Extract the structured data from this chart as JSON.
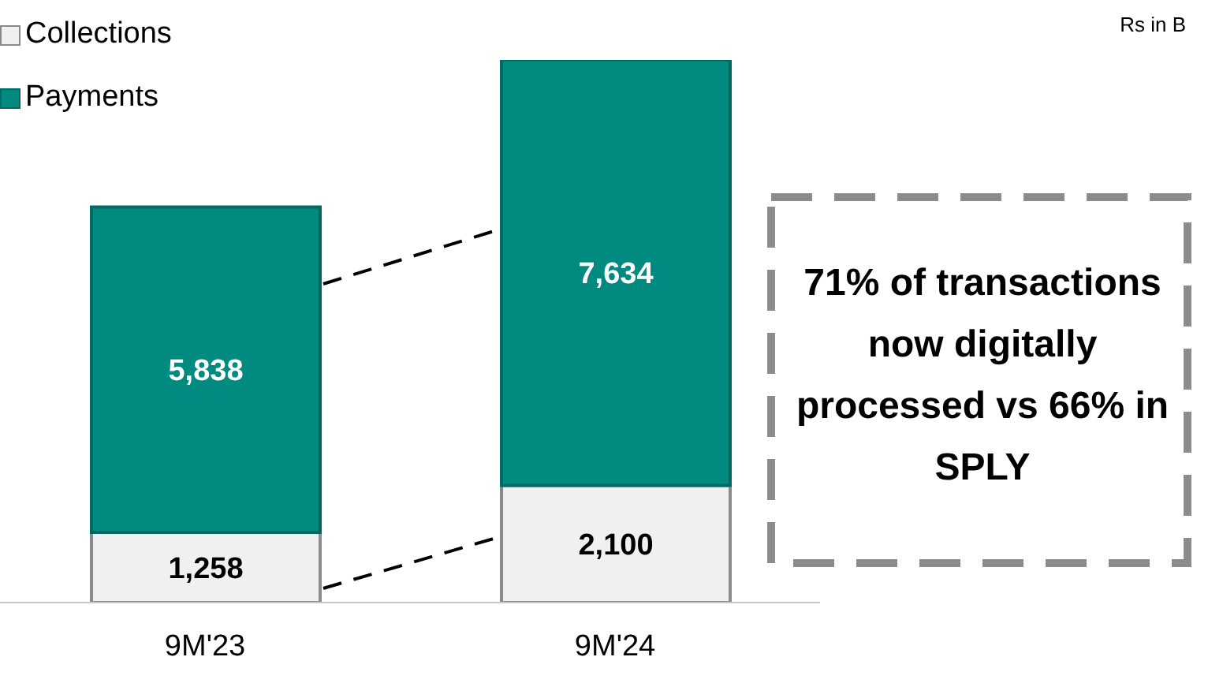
{
  "chart_data": {
    "type": "bar",
    "stacked": true,
    "categories": [
      "9M'23",
      "9M'24"
    ],
    "series": [
      {
        "name": "Collections",
        "color": "#f0f0f0",
        "values": [
          1258,
          2100
        ],
        "value_labels": [
          "1,258",
          "2,100"
        ]
      },
      {
        "name": "Payments",
        "color": "#008a80",
        "values": [
          5838,
          7634
        ],
        "value_labels": [
          "5,838",
          "7,634"
        ]
      }
    ],
    "legend": "top left",
    "grid": false,
    "annotations": [
      "Rs in B",
      "71% of transactions now digitally processed vs 66% in SPLY"
    ]
  }
}
